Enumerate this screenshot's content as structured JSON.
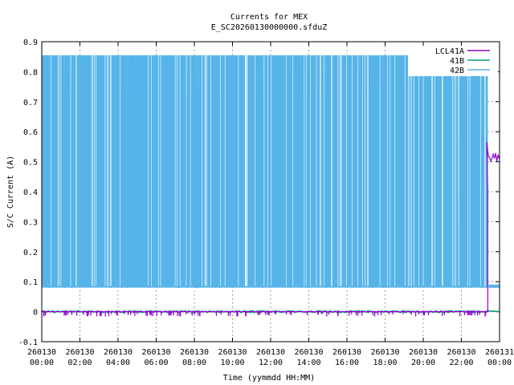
{
  "chart_data": {
    "type": "line",
    "title": "Currents for MEX",
    "subtitle": "E_SC20260130000000.sfduZ",
    "xlabel": "Time (yymmdd HH:MM)",
    "ylabel": "S/C Current (A)",
    "ylim": [
      -0.1,
      0.9
    ],
    "yticks": [
      "-0.1",
      "0",
      "0.1",
      "0.2",
      "0.3",
      "0.4",
      "0.5",
      "0.6",
      "0.7",
      "0.8",
      "0.9"
    ],
    "xlim_hours": [
      0,
      24
    ],
    "xticks": [
      {
        "date": "260130",
        "time": "00:00"
      },
      {
        "date": "260130",
        "time": "02:00"
      },
      {
        "date": "260130",
        "time": "04:00"
      },
      {
        "date": "260130",
        "time": "06:00"
      },
      {
        "date": "260130",
        "time": "08:00"
      },
      {
        "date": "260130",
        "time": "10:00"
      },
      {
        "date": "260130",
        "time": "12:00"
      },
      {
        "date": "260130",
        "time": "14:00"
      },
      {
        "date": "260130",
        "time": "16:00"
      },
      {
        "date": "260130",
        "time": "18:00"
      },
      {
        "date": "260130",
        "time": "20:00"
      },
      {
        "date": "260130",
        "time": "22:00"
      },
      {
        "date": "260131",
        "time": "00:00"
      }
    ],
    "grid": true,
    "legend_position": "top-right",
    "series": [
      {
        "name": "LCL41A",
        "color": "#9400d3",
        "description": "near 0 until ~23:23, then jumps to ~0.52",
        "x": [
          "00:00",
          "23:23",
          "23:25",
          "23:30",
          "23:40",
          "23:50",
          "24:00"
        ],
        "y": [
          0.0,
          0.0,
          0.56,
          0.52,
          0.52,
          0.51,
          0.5
        ]
      },
      {
        "name": "41B",
        "color": "#009e73",
        "x": [
          "00:00",
          "23:23",
          "23:25",
          "24:00"
        ],
        "y": [
          0.0,
          0.0,
          0.0,
          0.0
        ]
      },
      {
        "name": "42B",
        "color": "#56b4e9",
        "description": "rapid switching between ~0.08 and ~0.855 until ~23:23, then ~0.085",
        "x": [
          "00:00",
          "23:23",
          "23:25",
          "24:00"
        ],
        "y_low": 0.08,
        "y_high": 0.855,
        "y_after": 0.085
      }
    ]
  }
}
